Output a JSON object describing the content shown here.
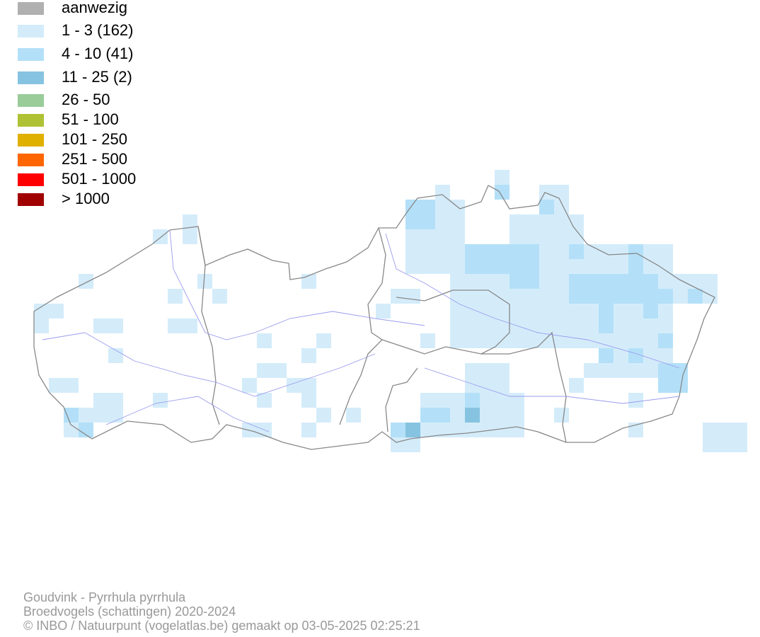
{
  "legend": [
    {
      "label": "aanwezig",
      "color": "#b0b0b0"
    },
    {
      "label": "1 - 3 (162)",
      "color": "#d4ecfa"
    },
    {
      "label": "4 - 10 (41)",
      "color": "#b3e0f8"
    },
    {
      "label": "11 - 25 (2)",
      "color": "#86c3e0"
    },
    {
      "label": "26 - 50",
      "color": "#99cc99"
    },
    {
      "label": "51 - 100",
      "color": "#afc134"
    },
    {
      "label": "101 - 250",
      "color": "#e0b000"
    },
    {
      "label": "251 - 500",
      "color": "#ff6600"
    },
    {
      "label": "501 - 1000",
      "color": "#ff0000"
    },
    {
      "label": "> 1000",
      "color": "#a00000"
    }
  ],
  "footer": {
    "species": "Goudvink - Pyrrhula pyrrhula",
    "subtitle": "Broedvogels (schattingen) 2020-2024",
    "credit": "© INBO / Natuurpunt (vogelatlas.be) gemaakt op 03-05-2025 02:25:21"
  }
}
